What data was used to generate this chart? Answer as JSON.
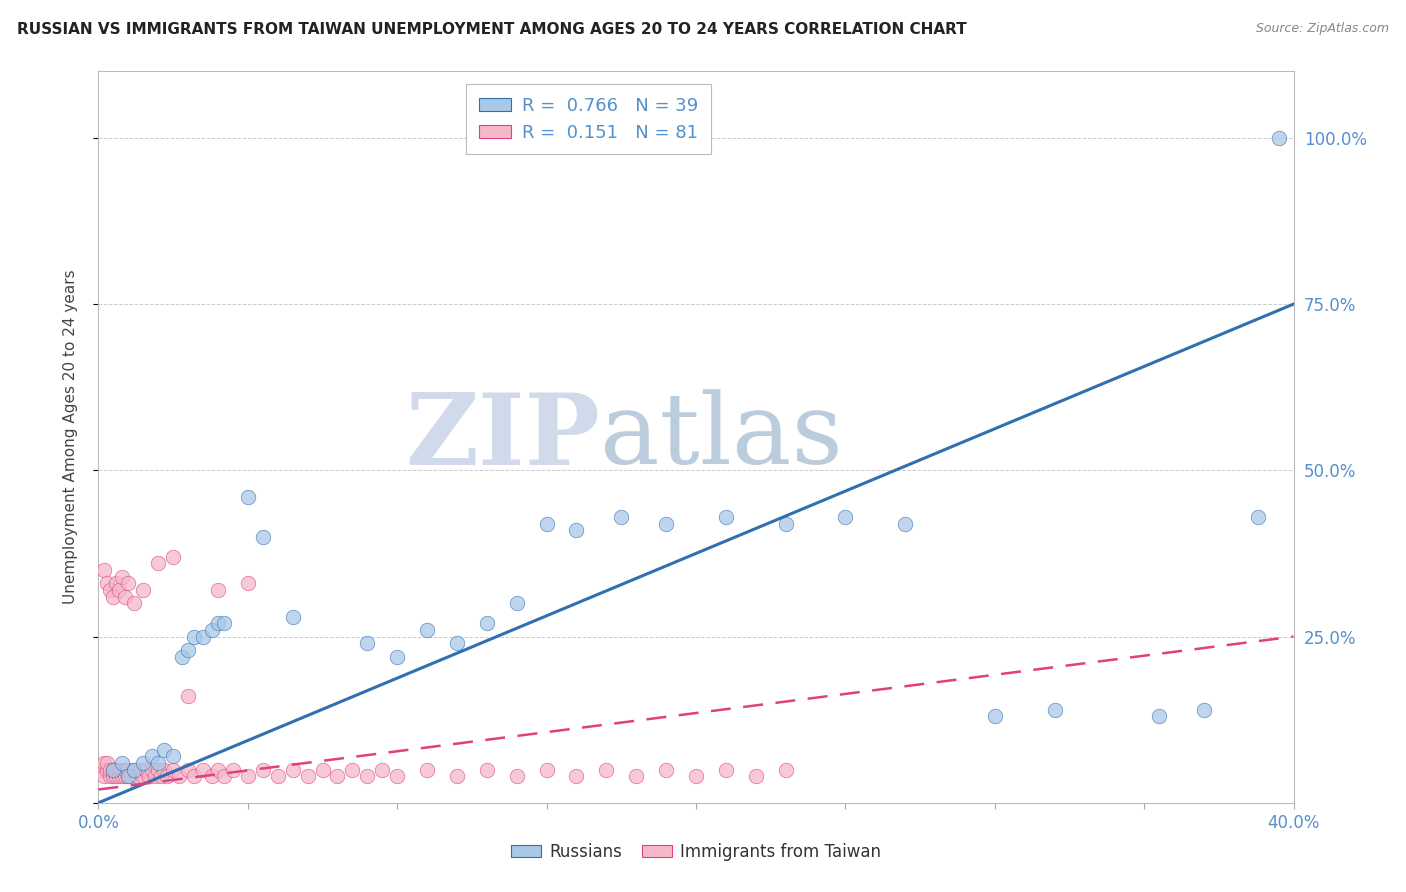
{
  "title": "RUSSIAN VS IMMIGRANTS FROM TAIWAN UNEMPLOYMENT AMONG AGES 20 TO 24 YEARS CORRELATION CHART",
  "source": "Source: ZipAtlas.com",
  "ylabel_label": "Unemployment Among Ages 20 to 24 years",
  "legend_label1": "R =  0.766   N = 39",
  "legend_label2": "R =  0.151   N = 81",
  "legend_group1": "Russians",
  "legend_group2": "Immigrants from Taiwan",
  "color_russian": "#a8c8e8",
  "color_taiwan": "#f4b8c8",
  "color_russian_line": "#3070b0",
  "color_taiwan_line": "#e04080",
  "watermark_color": "#c8d4e8",
  "xlim": [
    0.0,
    0.4
  ],
  "ylim": [
    0.0,
    1.1
  ],
  "blue_line_x": [
    0.0,
    0.4
  ],
  "blue_line_y": [
    0.0,
    0.75
  ],
  "pink_line_x": [
    0.0,
    0.4
  ],
  "pink_line_y": [
    0.02,
    0.25
  ],
  "russians_x": [
    0.005,
    0.008,
    0.01,
    0.012,
    0.015,
    0.018,
    0.02,
    0.022,
    0.025,
    0.028,
    0.03,
    0.032,
    0.035,
    0.038,
    0.04,
    0.042,
    0.05,
    0.055,
    0.065,
    0.09,
    0.1,
    0.11,
    0.12,
    0.13,
    0.14,
    0.15,
    0.16,
    0.175,
    0.19,
    0.21,
    0.23,
    0.25,
    0.27,
    0.3,
    0.32,
    0.355,
    0.37,
    0.388,
    0.395
  ],
  "russians_y": [
    0.05,
    0.06,
    0.04,
    0.05,
    0.06,
    0.07,
    0.06,
    0.08,
    0.07,
    0.22,
    0.23,
    0.25,
    0.25,
    0.26,
    0.27,
    0.27,
    0.46,
    0.4,
    0.28,
    0.24,
    0.22,
    0.26,
    0.24,
    0.27,
    0.3,
    0.42,
    0.41,
    0.43,
    0.42,
    0.43,
    0.42,
    0.43,
    0.42,
    0.13,
    0.14,
    0.13,
    0.14,
    0.43,
    1.0
  ],
  "taiwan_x": [
    0.001,
    0.002,
    0.002,
    0.003,
    0.003,
    0.004,
    0.004,
    0.005,
    0.005,
    0.006,
    0.006,
    0.007,
    0.007,
    0.008,
    0.008,
    0.009,
    0.009,
    0.01,
    0.01,
    0.011,
    0.012,
    0.013,
    0.014,
    0.015,
    0.016,
    0.017,
    0.018,
    0.019,
    0.02,
    0.021,
    0.022,
    0.023,
    0.025,
    0.027,
    0.03,
    0.032,
    0.035,
    0.038,
    0.04,
    0.042,
    0.045,
    0.05,
    0.055,
    0.06,
    0.065,
    0.07,
    0.075,
    0.08,
    0.085,
    0.09,
    0.095,
    0.1,
    0.11,
    0.12,
    0.13,
    0.14,
    0.15,
    0.16,
    0.17,
    0.18,
    0.19,
    0.2,
    0.21,
    0.22,
    0.23,
    0.002,
    0.003,
    0.004,
    0.005,
    0.006,
    0.007,
    0.008,
    0.009,
    0.01,
    0.012,
    0.015,
    0.02,
    0.025,
    0.03,
    0.04,
    0.05
  ],
  "taiwan_y": [
    0.05,
    0.06,
    0.04,
    0.05,
    0.06,
    0.04,
    0.05,
    0.04,
    0.05,
    0.04,
    0.05,
    0.04,
    0.05,
    0.04,
    0.05,
    0.04,
    0.05,
    0.04,
    0.05,
    0.04,
    0.05,
    0.04,
    0.05,
    0.04,
    0.05,
    0.04,
    0.05,
    0.04,
    0.05,
    0.04,
    0.05,
    0.04,
    0.05,
    0.04,
    0.05,
    0.04,
    0.05,
    0.04,
    0.05,
    0.04,
    0.05,
    0.04,
    0.05,
    0.04,
    0.05,
    0.04,
    0.05,
    0.04,
    0.05,
    0.04,
    0.05,
    0.04,
    0.05,
    0.04,
    0.05,
    0.04,
    0.05,
    0.04,
    0.05,
    0.04,
    0.05,
    0.04,
    0.05,
    0.04,
    0.05,
    0.35,
    0.33,
    0.32,
    0.31,
    0.33,
    0.32,
    0.34,
    0.31,
    0.33,
    0.3,
    0.32,
    0.36,
    0.37,
    0.16,
    0.32,
    0.33
  ]
}
